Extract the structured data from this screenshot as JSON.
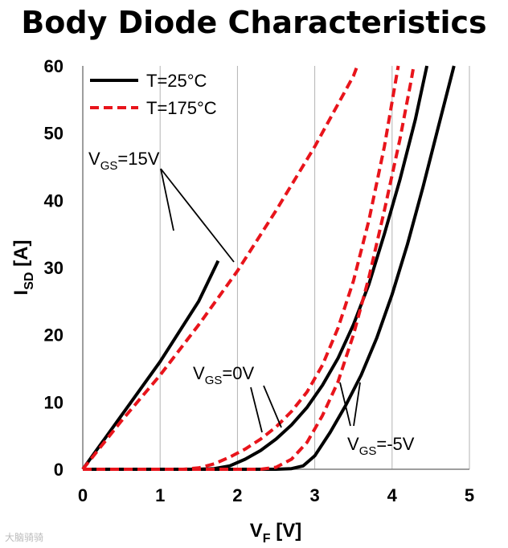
{
  "chart_data": {
    "type": "line",
    "title": "Body Diode Characteristics",
    "xlabel": {
      "main": "V",
      "sub": "F",
      "unit": " [V]"
    },
    "ylabel": {
      "main": "I",
      "sub": "SD",
      "unit": " [A]"
    },
    "xlim": [
      0,
      5
    ],
    "ylim": [
      0,
      60
    ],
    "xticks": [
      "0",
      "1",
      "2",
      "3",
      "4",
      "5"
    ],
    "yticks": [
      "0",
      "10",
      "20",
      "30",
      "40",
      "50",
      "60"
    ],
    "grid": "vertical",
    "legend": {
      "placement": "top-left",
      "entries": [
        {
          "label": "T=25°C",
          "color": "#000000",
          "dash": "solid"
        },
        {
          "label": "T=175°C",
          "color": "#e8141b",
          "dash": "dashed"
        }
      ]
    },
    "series": [
      {
        "temp": "T=25°C",
        "vgs": "15V",
        "color": "#000000",
        "dash": "solid",
        "points": [
          [
            0,
            0
          ],
          [
            0.5,
            8
          ],
          [
            1,
            16
          ],
          [
            1.5,
            25
          ],
          [
            1.75,
            31
          ]
        ]
      },
      {
        "temp": "T=175°C",
        "vgs": "15V",
        "color": "#e8141b",
        "dash": "dashed",
        "points": [
          [
            0,
            0
          ],
          [
            0.5,
            7.2
          ],
          [
            1,
            14
          ],
          [
            1.5,
            21.5
          ],
          [
            2,
            29.5
          ],
          [
            2.5,
            38.5
          ],
          [
            3,
            48
          ],
          [
            3.5,
            58.5
          ],
          [
            3.55,
            60
          ]
        ]
      },
      {
        "temp": "T=25°C",
        "vgs": "0V",
        "color": "#000000",
        "dash": "solid",
        "points": [
          [
            0,
            0
          ],
          [
            1.5,
            0
          ],
          [
            1.7,
            0.1
          ],
          [
            1.9,
            0.5
          ],
          [
            2.1,
            1.5
          ],
          [
            2.3,
            2.8
          ],
          [
            2.5,
            4.5
          ],
          [
            2.7,
            6.6
          ],
          [
            2.9,
            9.2
          ],
          [
            3.1,
            12.5
          ],
          [
            3.3,
            16.5
          ],
          [
            3.5,
            21.5
          ],
          [
            3.7,
            27.5
          ],
          [
            3.9,
            35
          ],
          [
            4.1,
            43
          ],
          [
            4.3,
            52
          ],
          [
            4.45,
            60
          ]
        ]
      },
      {
        "temp": "T=175°C",
        "vgs": "0V",
        "color": "#e8141b",
        "dash": "dashed",
        "points": [
          [
            0,
            0
          ],
          [
            1.3,
            0
          ],
          [
            1.5,
            0.2
          ],
          [
            1.7,
            0.8
          ],
          [
            1.9,
            1.8
          ],
          [
            2.1,
            3
          ],
          [
            2.3,
            4.5
          ],
          [
            2.5,
            6.3
          ],
          [
            2.7,
            8.6
          ],
          [
            2.9,
            11.5
          ],
          [
            3.1,
            15.5
          ],
          [
            3.3,
            21
          ],
          [
            3.5,
            28
          ],
          [
            3.7,
            37
          ],
          [
            3.9,
            48
          ],
          [
            4.05,
            58
          ],
          [
            4.08,
            60
          ]
        ]
      },
      {
        "temp": "T=25°C",
        "vgs": "-5V",
        "color": "#000000",
        "dash": "solid",
        "points": [
          [
            0,
            0
          ],
          [
            2.5,
            0
          ],
          [
            2.7,
            0.1
          ],
          [
            2.85,
            0.5
          ],
          [
            3,
            2
          ],
          [
            3.2,
            5.5
          ],
          [
            3.4,
            9.5
          ],
          [
            3.6,
            14
          ],
          [
            3.8,
            19.5
          ],
          [
            4,
            26
          ],
          [
            4.2,
            33.5
          ],
          [
            4.4,
            42
          ],
          [
            4.6,
            51
          ],
          [
            4.8,
            60
          ]
        ]
      },
      {
        "temp": "T=175°C",
        "vgs": "-5V",
        "color": "#e8141b",
        "dash": "dashed",
        "points": [
          [
            0,
            0
          ],
          [
            2.3,
            0
          ],
          [
            2.5,
            0.3
          ],
          [
            2.7,
            1.5
          ],
          [
            2.9,
            4
          ],
          [
            3.1,
            8
          ],
          [
            3.3,
            13
          ],
          [
            3.5,
            20
          ],
          [
            3.7,
            28.5
          ],
          [
            3.9,
            38.5
          ],
          [
            4.1,
            49
          ],
          [
            4.25,
            58
          ],
          [
            4.28,
            60
          ]
        ]
      }
    ],
    "annotations": [
      {
        "main": "V",
        "sub": "GS",
        "rest": "=15V"
      },
      {
        "main": "V",
        "sub": "GS",
        "rest": "=0V"
      },
      {
        "main": "V",
        "sub": "GS",
        "rest": "=-5V"
      }
    ]
  },
  "watermark": "大脑骑骑"
}
